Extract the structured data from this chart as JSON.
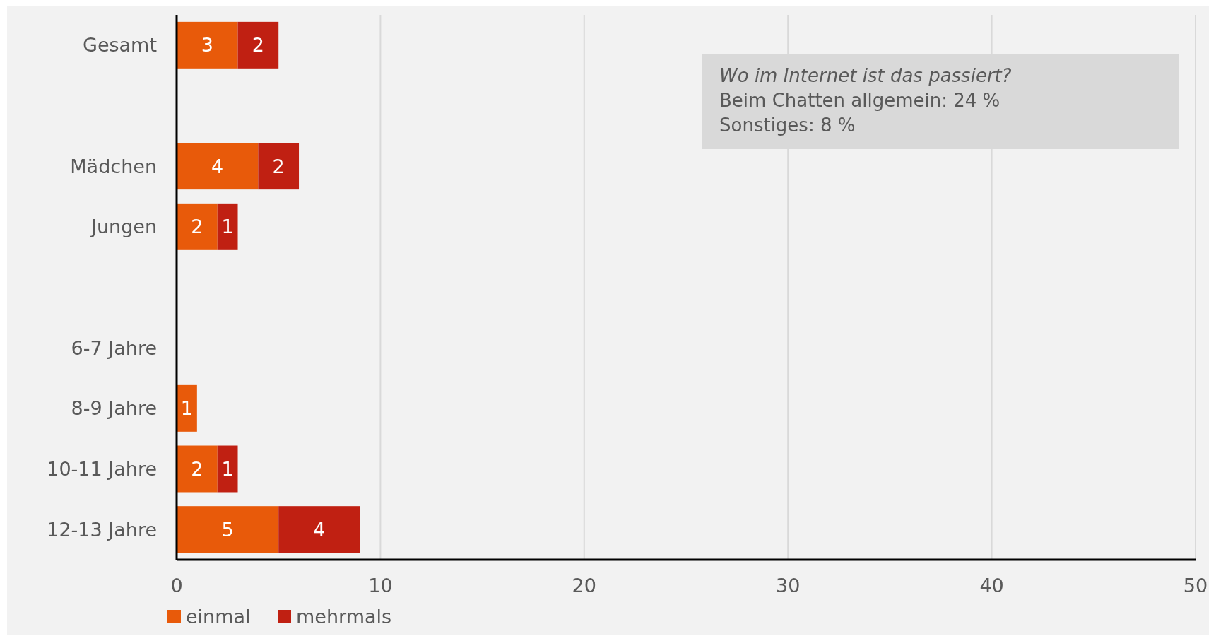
{
  "chart_data": {
    "type": "bar",
    "orientation": "horizontal",
    "stacked": true,
    "categories": [
      "Gesamt",
      null,
      "Mädchen",
      "Jungen",
      null,
      "6-7 Jahre",
      "8-9 Jahre",
      "10-11 Jahre",
      "12-13 Jahre"
    ],
    "series": [
      {
        "name": "einmal",
        "color": "#e85a0a",
        "values": [
          3,
          null,
          4,
          2,
          null,
          null,
          1,
          2,
          5
        ]
      },
      {
        "name": "mehrmals",
        "color": "#c02012",
        "values": [
          2,
          null,
          2,
          1,
          null,
          null,
          null,
          1,
          4
        ]
      }
    ],
    "xlim": [
      0,
      50
    ],
    "xticks": [
      0,
      10,
      20,
      30,
      40,
      50
    ],
    "grid": "x",
    "legend": "bottom left",
    "data_labels": true,
    "annotations": [
      "Wo im Internet ist das passiert?",
      "Beim Chatten allgemein: 24 %",
      "Sonstiges: 8 %"
    ]
  }
}
